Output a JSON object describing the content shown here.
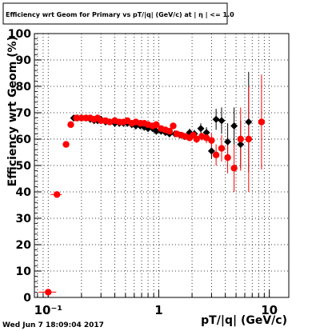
{
  "chart_data": {
    "type": "scatter",
    "title": "Efficiency wrt Geom for Primary vs pT/|q| (GeV/c) at | η | <= 1.0",
    "xlabel": "pT/|q| (GeV/c)",
    "ylabel": "Efficiency wrt Geom (%)",
    "x_scale": "log",
    "xlim": [
      0.075,
      15
    ],
    "ylim": [
      0,
      100
    ],
    "x_tick_labels": [
      "10⁻¹",
      "1",
      "10"
    ],
    "y_ticks": [
      0,
      10,
      20,
      30,
      40,
      50,
      60,
      70,
      80,
      90,
      100
    ],
    "grid": true,
    "series": [
      {
        "color": "#000000",
        "marker": "diamond",
        "points": [
          [
            0.17,
            68
          ],
          [
            0.185,
            68
          ],
          [
            0.2,
            68
          ],
          [
            0.22,
            68
          ],
          [
            0.24,
            67.5
          ],
          [
            0.26,
            67
          ],
          [
            0.28,
            67
          ],
          [
            0.3,
            67.5
          ],
          [
            0.33,
            66.5
          ],
          [
            0.36,
            66.5
          ],
          [
            0.4,
            66
          ],
          [
            0.44,
            66
          ],
          [
            0.48,
            66
          ],
          [
            0.52,
            66
          ],
          [
            0.57,
            65.5
          ],
          [
            0.62,
            65
          ],
          [
            0.68,
            65
          ],
          [
            0.74,
            64.5
          ],
          [
            0.8,
            64
          ],
          [
            0.88,
            64
          ],
          [
            0.95,
            63
          ],
          [
            1.05,
            63
          ],
          [
            1.15,
            62.5
          ],
          [
            1.25,
            62
          ],
          [
            1.4,
            62
          ],
          [
            1.55,
            61.5
          ],
          [
            1.7,
            61
          ],
          [
            1.9,
            62.5
          ],
          [
            2.1,
            62
          ],
          [
            2.4,
            64
          ],
          [
            2.7,
            62.5
          ],
          [
            3.0,
            55.5
          ],
          [
            3.3,
            67.5
          ],
          [
            3.7,
            67
          ],
          [
            4.2,
            59
          ],
          [
            4.8,
            65
          ],
          [
            5.5,
            58
          ],
          [
            6.5,
            66.5
          ]
        ],
        "errors": [
          0,
          0,
          0,
          0,
          0,
          0,
          0,
          0,
          0,
          0,
          0,
          0,
          0,
          0,
          0,
          0,
          0,
          0,
          0,
          0,
          0,
          0,
          0,
          0,
          0,
          0,
          0,
          1.5,
          1.5,
          2,
          2,
          3,
          4,
          5,
          7,
          7,
          9,
          19
        ]
      },
      {
        "color": "#ff0000",
        "marker": "circle",
        "points": [
          [
            0.1,
            2
          ],
          [
            0.12,
            39
          ],
          [
            0.145,
            58
          ],
          [
            0.16,
            65.5
          ],
          [
            0.18,
            68
          ],
          [
            0.2,
            68
          ],
          [
            0.22,
            68
          ],
          [
            0.24,
            68
          ],
          [
            0.26,
            67.5
          ],
          [
            0.28,
            68
          ],
          [
            0.3,
            67
          ],
          [
            0.33,
            67
          ],
          [
            0.36,
            66.5
          ],
          [
            0.4,
            67
          ],
          [
            0.44,
            66.5
          ],
          [
            0.48,
            66.5
          ],
          [
            0.52,
            67
          ],
          [
            0.57,
            66
          ],
          [
            0.62,
            66.5
          ],
          [
            0.68,
            66
          ],
          [
            0.74,
            66
          ],
          [
            0.8,
            65.5
          ],
          [
            0.88,
            65
          ],
          [
            0.95,
            65.5
          ],
          [
            1.05,
            64
          ],
          [
            1.15,
            63.5
          ],
          [
            1.25,
            63
          ],
          [
            1.35,
            65
          ],
          [
            1.45,
            62
          ],
          [
            1.6,
            61.5
          ],
          [
            1.75,
            61
          ],
          [
            1.9,
            60.5
          ],
          [
            2.05,
            61.5
          ],
          [
            2.2,
            60
          ],
          [
            2.45,
            61
          ],
          [
            2.7,
            60.5
          ],
          [
            3.0,
            59.5
          ],
          [
            3.3,
            54
          ],
          [
            3.7,
            56.5
          ],
          [
            4.2,
            53
          ],
          [
            4.8,
            49
          ],
          [
            5.5,
            60
          ],
          [
            6.5,
            60
          ],
          [
            8.5,
            66.5
          ]
        ],
        "errors": [
          0,
          0,
          0,
          0,
          0,
          0,
          0,
          0,
          0,
          0,
          0,
          0,
          0,
          0,
          0,
          0,
          0,
          0,
          0,
          0,
          0,
          0,
          0,
          0,
          0,
          0,
          0,
          0,
          0,
          0,
          0,
          0,
          1,
          1.5,
          1.5,
          2,
          3,
          4,
          5,
          6,
          9,
          12,
          20,
          18
        ]
      }
    ]
  },
  "timestamp": "Wed Jun  7 18:09:04 2017"
}
